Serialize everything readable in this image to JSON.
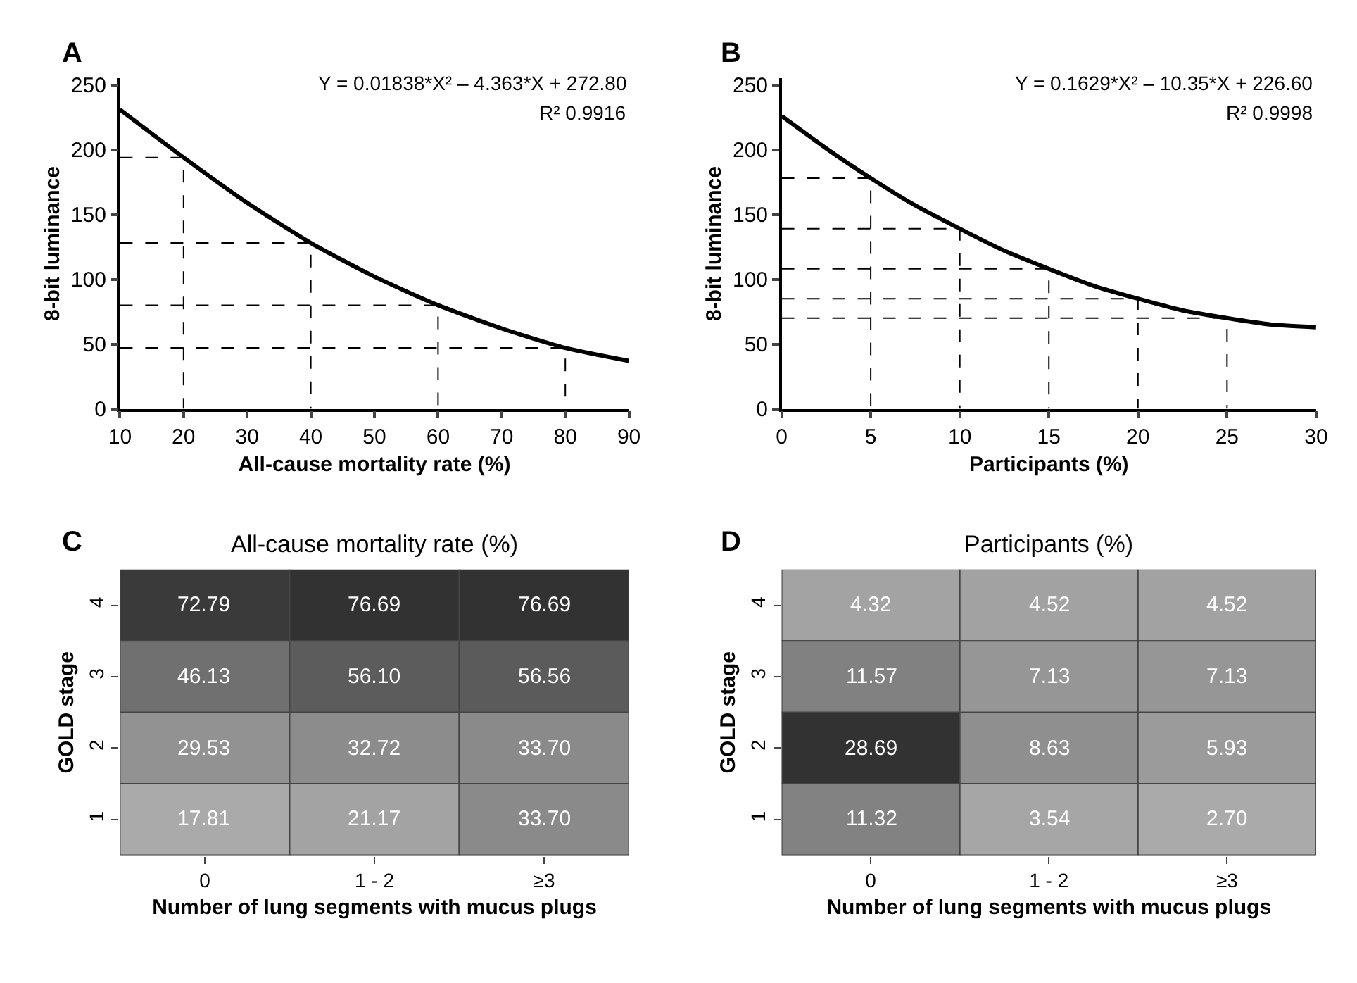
{
  "chart_data": [
    {
      "type": "line",
      "xlabel": "All-cause mortality rate (%)",
      "ylabel": "8-bit luminance",
      "xlim": [
        10,
        90
      ],
      "ylim": [
        0,
        255
      ],
      "xticks": [
        10,
        20,
        30,
        40,
        50,
        60,
        70,
        80,
        90
      ],
      "yticks": [
        0,
        50,
        100,
        150,
        200,
        250
      ],
      "annotations": [
        "A",
        "Y = 0.01838*X² – 4.363*X + 272.80",
        "R² 0.9916"
      ],
      "series": [
        {
          "color": "#000000",
          "line_style": "solid",
          "x": [
            10,
            20,
            30,
            40,
            50,
            60,
            70,
            80,
            90
          ],
          "values": [
            231,
            194,
            159,
            128,
            102,
            80,
            62,
            47,
            37
          ]
        },
        {
          "color": "#000000",
          "line_style": "dashed",
          "x": [
            10,
            20,
            20
          ],
          "values": [
            194,
            194,
            0
          ]
        },
        {
          "color": "#000000",
          "line_style": "dashed",
          "x": [
            10,
            40,
            40
          ],
          "values": [
            128,
            128,
            0
          ]
        },
        {
          "color": "#000000",
          "line_style": "dashed",
          "x": [
            10,
            60,
            60
          ],
          "values": [
            80,
            80,
            0
          ]
        },
        {
          "color": "#000000",
          "line_style": "dashed",
          "x": [
            10,
            80,
            80
          ],
          "values": [
            47,
            47,
            0
          ]
        }
      ]
    },
    {
      "type": "line",
      "xlabel": "Participants (%)",
      "ylabel": "8-bit luminance",
      "xlim": [
        0,
        30
      ],
      "ylim": [
        0,
        255
      ],
      "xticks": [
        0,
        5,
        10,
        15,
        20,
        25,
        30
      ],
      "yticks": [
        0,
        50,
        100,
        150,
        200,
        250
      ],
      "annotations": [
        "B",
        "Y = 0.1629*X² – 10.35*X + 226.60",
        "R² 0.9998"
      ],
      "series": [
        {
          "color": "#000000",
          "line_style": "solid",
          "x": [
            0,
            2.5,
            5,
            7.5,
            10,
            12.5,
            15,
            17.5,
            20,
            22.5,
            25,
            27.5,
            30
          ],
          "values": [
            226,
            201,
            178,
            157,
            139,
            122,
            108,
            95,
            85,
            76,
            70,
            65,
            63
          ]
        },
        {
          "color": "#000000",
          "line_style": "dashed",
          "x": [
            0,
            5,
            5
          ],
          "values": [
            178,
            178,
            0
          ]
        },
        {
          "color": "#000000",
          "line_style": "dashed",
          "x": [
            0,
            10,
            10
          ],
          "values": [
            139,
            139,
            0
          ]
        },
        {
          "color": "#000000",
          "line_style": "dashed",
          "x": [
            0,
            15,
            15
          ],
          "values": [
            108,
            108,
            0
          ]
        },
        {
          "color": "#000000",
          "line_style": "dashed",
          "x": [
            0,
            20,
            20
          ],
          "values": [
            85,
            85,
            0
          ]
        },
        {
          "color": "#000000",
          "line_style": "dashed",
          "x": [
            0,
            25,
            25
          ],
          "values": [
            70,
            70,
            0
          ]
        }
      ]
    },
    {
      "type": "heatmap",
      "title": "All-cause mortality rate (%)",
      "xlabel": "Number of lung segments with mucus plugs",
      "ylabel": "GOLD stage",
      "annotations": [
        "C"
      ],
      "data_labels": true,
      "categories": [
        "0",
        "1 - 2",
        "≥3"
      ],
      "y_categories": [
        "4",
        "3",
        "2",
        "1"
      ],
      "cells": [
        [
          72.79,
          76.69,
          76.69
        ],
        [
          46.13,
          56.1,
          56.56
        ],
        [
          29.53,
          32.72,
          33.7
        ],
        [
          17.81,
          21.17,
          33.7
        ]
      ],
      "cell_labels": [
        [
          "72.79",
          "76.69",
          "76.69"
        ],
        [
          "46.13",
          "56.10",
          "56.56"
        ],
        [
          "29.53",
          "32.72",
          "33.70"
        ],
        [
          "17.81",
          "21.17",
          "33.70"
        ]
      ]
    },
    {
      "type": "heatmap",
      "title": "Participants (%)",
      "xlabel": "Number of lung segments with mucus plugs",
      "ylabel": "GOLD stage",
      "annotations": [
        "D"
      ],
      "data_labels": true,
      "categories": [
        "0",
        "1 - 2",
        "≥3"
      ],
      "y_categories": [
        "4",
        "3",
        "2",
        "1"
      ],
      "cells": [
        [
          4.32,
          4.52,
          4.52
        ],
        [
          11.57,
          7.13,
          7.13
        ],
        [
          28.69,
          8.63,
          5.93
        ],
        [
          11.32,
          3.54,
          2.7
        ]
      ],
      "cell_labels": [
        [
          "4.32",
          "4.52",
          "4.52"
        ],
        [
          "11.57",
          "7.13",
          "7.13"
        ],
        [
          "28.69",
          "8.63",
          "5.93"
        ],
        [
          "11.32",
          "3.54",
          "2.70"
        ]
      ]
    }
  ]
}
